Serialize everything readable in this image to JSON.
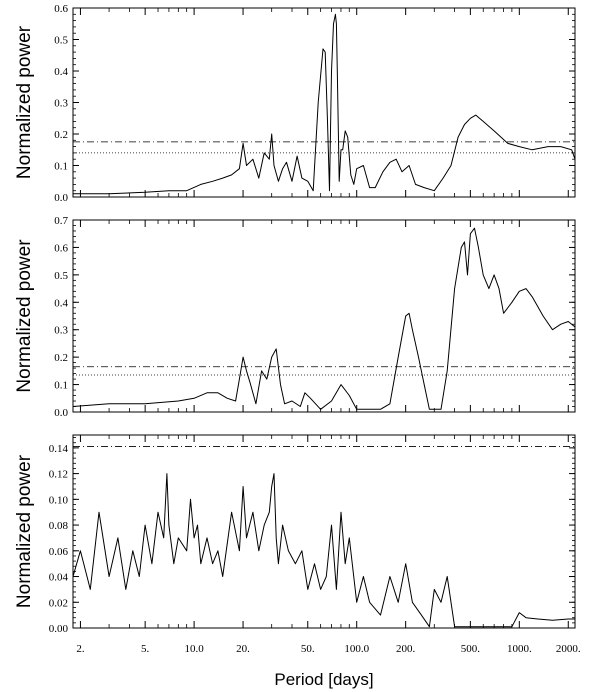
{
  "figure": {
    "xlabel": "Period [days]",
    "x_tick_labels": [
      "2.",
      "5.",
      "10.0",
      "20.",
      "50.",
      "100.0",
      "200.",
      "500.",
      "1000.",
      "2000."
    ]
  },
  "chart_data": [
    {
      "type": "line",
      "title": "",
      "xlabel": "",
      "ylabel": "Normalized power",
      "xscale": "log",
      "xlim": [
        1.8,
        2200
      ],
      "ylim": [
        0,
        0.6
      ],
      "yticks": [
        0.0,
        0.1,
        0.2,
        0.3,
        0.4,
        0.5,
        0.6
      ],
      "ytick_labels": [
        "0.0",
        "0.1",
        "0.2",
        "0.3",
        "0.4",
        "0.5",
        "0.6"
      ],
      "fap_levels": [
        {
          "value": 0.175,
          "style": "dash-dot"
        },
        {
          "value": 0.14,
          "style": "dotted"
        }
      ],
      "series": [
        {
          "x": [
            1.8,
            3,
            5,
            7,
            9,
            11,
            13,
            15,
            17,
            19,
            20,
            21,
            23,
            25,
            27,
            29,
            30,
            31,
            33,
            35,
            37,
            40,
            43,
            46,
            50,
            54,
            58,
            62,
            64,
            66,
            68,
            70,
            72,
            74,
            75,
            76,
            78,
            80,
            82,
            85,
            88,
            92,
            96,
            100,
            110,
            120,
            130,
            145,
            160,
            175,
            190,
            210,
            230,
            260,
            300,
            340,
            380,
            420,
            460,
            500,
            540,
            600,
            700,
            850,
            1000,
            1200,
            1500,
            1800,
            2100,
            2200
          ],
          "y": [
            0.01,
            0.01,
            0.015,
            0.02,
            0.02,
            0.04,
            0.05,
            0.06,
            0.07,
            0.09,
            0.17,
            0.1,
            0.12,
            0.06,
            0.14,
            0.12,
            0.2,
            0.1,
            0.05,
            0.09,
            0.11,
            0.05,
            0.13,
            0.06,
            0.05,
            0.02,
            0.3,
            0.47,
            0.46,
            0.25,
            0.02,
            0.4,
            0.55,
            0.58,
            0.55,
            0.4,
            0.05,
            0.15,
            0.15,
            0.21,
            0.19,
            0.07,
            0.04,
            0.09,
            0.1,
            0.03,
            0.03,
            0.08,
            0.11,
            0.12,
            0.08,
            0.1,
            0.04,
            0.03,
            0.02,
            0.06,
            0.1,
            0.19,
            0.23,
            0.25,
            0.26,
            0.24,
            0.21,
            0.17,
            0.16,
            0.15,
            0.16,
            0.16,
            0.15,
            0.12
          ]
        }
      ]
    },
    {
      "type": "line",
      "title": "",
      "xlabel": "",
      "ylabel": "Normalized power",
      "xscale": "log",
      "xlim": [
        1.8,
        2200
      ],
      "ylim": [
        0,
        0.7
      ],
      "yticks": [
        0.0,
        0.1,
        0.2,
        0.3,
        0.4,
        0.5,
        0.6,
        0.7
      ],
      "ytick_labels": [
        "0.0",
        "0.1",
        "0.2",
        "0.3",
        "0.4",
        "0.5",
        "0.6",
        "0.7"
      ],
      "fap_levels": [
        {
          "value": 0.165,
          "style": "dash-dot"
        },
        {
          "value": 0.135,
          "style": "dotted"
        }
      ],
      "series": [
        {
          "x": [
            1.8,
            3,
            5,
            8,
            10,
            12,
            14,
            16,
            18,
            19,
            20,
            21,
            22,
            24,
            26,
            28,
            30,
            32,
            34,
            36,
            40,
            45,
            48,
            52,
            60,
            70,
            80,
            90,
            100,
            120,
            140,
            160,
            180,
            200,
            210,
            220,
            240,
            260,
            280,
            300,
            330,
            360,
            400,
            440,
            460,
            480,
            500,
            530,
            560,
            600,
            650,
            700,
            750,
            800,
            900,
            1000,
            1100,
            1200,
            1400,
            1600,
            1800,
            2000,
            2200
          ],
          "y": [
            0.02,
            0.03,
            0.03,
            0.04,
            0.05,
            0.07,
            0.07,
            0.05,
            0.04,
            0.12,
            0.2,
            0.15,
            0.11,
            0.03,
            0.15,
            0.12,
            0.2,
            0.23,
            0.1,
            0.03,
            0.04,
            0.02,
            0.07,
            0.05,
            0.01,
            0.04,
            0.1,
            0.06,
            0.01,
            0.01,
            0.01,
            0.03,
            0.2,
            0.35,
            0.36,
            0.3,
            0.2,
            0.1,
            0.01,
            0.01,
            0.01,
            0.15,
            0.45,
            0.6,
            0.62,
            0.5,
            0.65,
            0.67,
            0.6,
            0.5,
            0.45,
            0.5,
            0.45,
            0.36,
            0.4,
            0.44,
            0.45,
            0.42,
            0.35,
            0.3,
            0.32,
            0.33,
            0.31
          ]
        }
      ]
    },
    {
      "type": "line",
      "title": "",
      "xlabel": "Period [days]",
      "ylabel": "Normalized power",
      "xscale": "log",
      "xlim": [
        1.8,
        2200
      ],
      "ylim": [
        0,
        0.15
      ],
      "yticks": [
        0.0,
        0.02,
        0.04,
        0.06,
        0.08,
        0.1,
        0.12,
        0.14
      ],
      "ytick_labels": [
        "0.00",
        "0.02",
        "0.04",
        "0.06",
        "0.08",
        "0.10",
        "0.12",
        "0.14"
      ],
      "fap_levels": [
        {
          "value": 0.141,
          "style": "dash-dot"
        }
      ],
      "series": [
        {
          "x": [
            1.8,
            2,
            2.3,
            2.6,
            3,
            3.4,
            3.8,
            4.2,
            4.6,
            5,
            5.5,
            6,
            6.5,
            6.8,
            7,
            7.5,
            8,
            9,
            9.5,
            10,
            10.5,
            11,
            12,
            13,
            14,
            15,
            17,
            19,
            20,
            21,
            23,
            25,
            27,
            29,
            30,
            31,
            32,
            33,
            35,
            38,
            42,
            46,
            50,
            55,
            60,
            65,
            70,
            75,
            80,
            85,
            90,
            100,
            110,
            120,
            140,
            160,
            180,
            200,
            220,
            250,
            280,
            300,
            330,
            360,
            400,
            500,
            700,
            900,
            1000,
            1100,
            1300,
            1600,
            2000,
            2200
          ],
          "y": [
            0.04,
            0.06,
            0.03,
            0.09,
            0.04,
            0.07,
            0.03,
            0.06,
            0.04,
            0.08,
            0.05,
            0.09,
            0.07,
            0.12,
            0.08,
            0.05,
            0.07,
            0.06,
            0.1,
            0.07,
            0.08,
            0.05,
            0.07,
            0.05,
            0.06,
            0.04,
            0.09,
            0.06,
            0.11,
            0.07,
            0.09,
            0.06,
            0.08,
            0.09,
            0.11,
            0.12,
            0.07,
            0.05,
            0.08,
            0.06,
            0.05,
            0.06,
            0.03,
            0.05,
            0.03,
            0.04,
            0.08,
            0.03,
            0.09,
            0.05,
            0.07,
            0.02,
            0.04,
            0.02,
            0.01,
            0.04,
            0.02,
            0.05,
            0.02,
            0.01,
            0.001,
            0.03,
            0.02,
            0.04,
            0.001,
            0.001,
            0.001,
            0.001,
            0.012,
            0.008,
            0.007,
            0.006,
            0.007,
            0.007
          ]
        }
      ]
    }
  ]
}
